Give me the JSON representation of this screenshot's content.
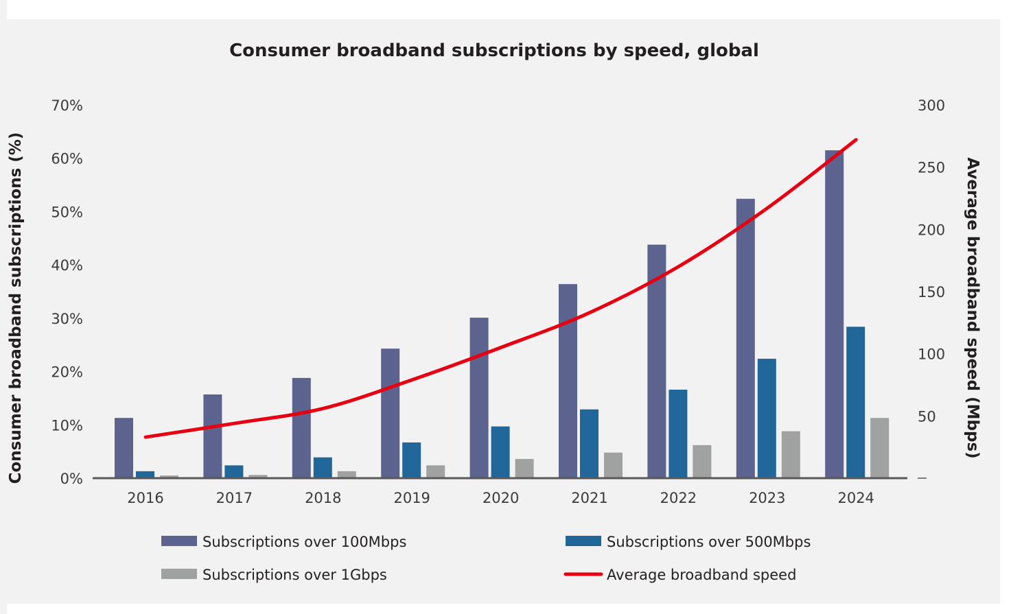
{
  "chart_data": {
    "type": "bar",
    "title": "Consumer broadband subscriptions by speed, global",
    "xlabel": "",
    "ylabel": "Consumer broadband subscriptions (%)",
    "y2label": "Average broadband speed (Mbps)",
    "categories": [
      "2016",
      "2017",
      "2018",
      "2019",
      "2020",
      "2021",
      "2022",
      "2023",
      "2024"
    ],
    "ylim": [
      0,
      70
    ],
    "y_ticks": [
      "0%",
      "10%",
      "20%",
      "30%",
      "40%",
      "50%",
      "60%",
      "70%"
    ],
    "y2lim": [
      0,
      300
    ],
    "y2_ticks": [
      "",
      "50",
      "100",
      "150",
      "200",
      "250",
      "300"
    ],
    "grid": false,
    "legend_position": "bottom",
    "series": [
      {
        "name": "Subscriptions over 100Mbps",
        "type": "bar",
        "axis": "left",
        "color": "#5b638e",
        "values": [
          11.3,
          15.7,
          18.8,
          24.3,
          30.1,
          36.4,
          43.8,
          52.4,
          61.5
        ]
      },
      {
        "name": "Subscriptions over 500Mbps",
        "type": "bar",
        "axis": "left",
        "color": "#206699",
        "values": [
          1.3,
          2.4,
          3.9,
          6.7,
          9.7,
          12.9,
          16.6,
          22.4,
          28.4
        ]
      },
      {
        "name": "Subscriptions over 1Gbps",
        "type": "bar",
        "axis": "left",
        "color": "#a0a1a1",
        "values": [
          0.5,
          0.6,
          1.3,
          2.4,
          3.6,
          4.8,
          6.2,
          8.8,
          11.3
        ]
      },
      {
        "name": "Average broadband speed",
        "type": "line",
        "axis": "right",
        "color": "#e60012",
        "values": [
          33,
          44,
          56,
          79,
          105,
          133,
          170,
          217,
          272
        ]
      }
    ]
  }
}
